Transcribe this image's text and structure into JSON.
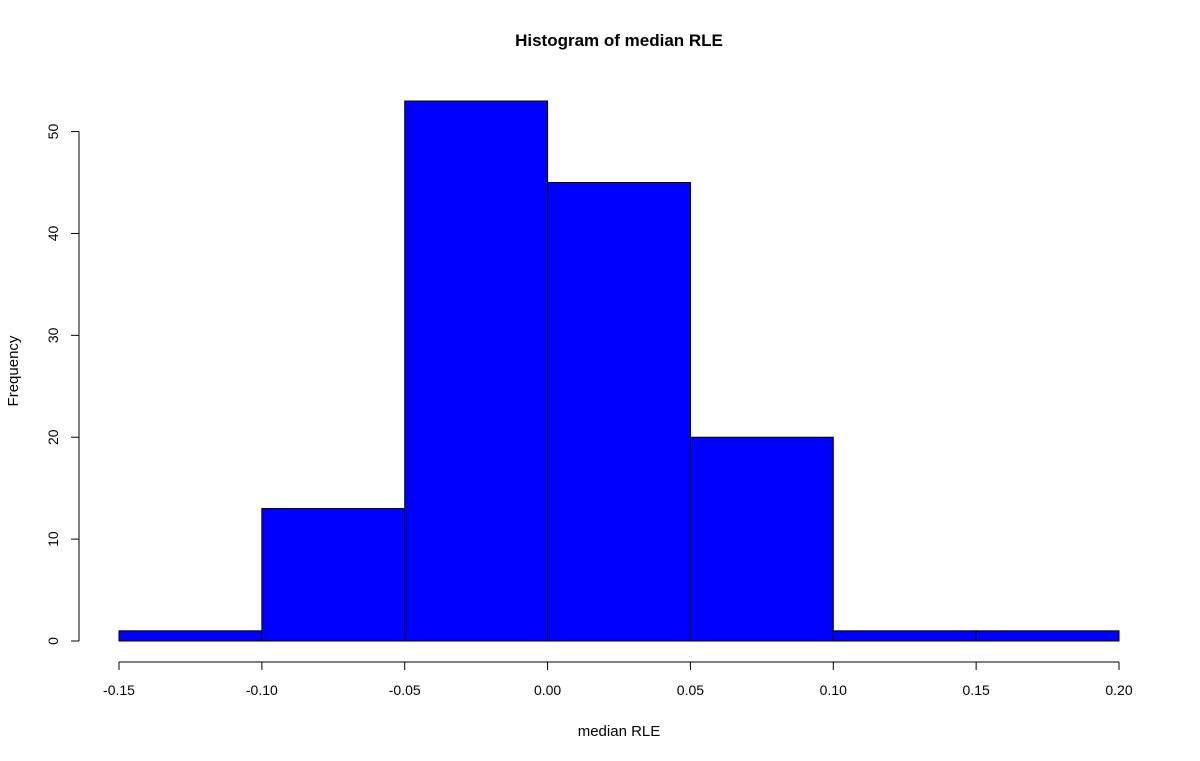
{
  "chart_data": {
    "type": "bar",
    "title": "Histogram of median RLE",
    "xlabel": "median RLE",
    "ylabel": "Frequency",
    "bins": [
      {
        "from": -0.15,
        "to": -0.1,
        "value": 1
      },
      {
        "from": -0.1,
        "to": -0.05,
        "value": 13
      },
      {
        "from": -0.05,
        "to": 0.0,
        "value": 53
      },
      {
        "from": 0.0,
        "to": 0.05,
        "value": 45
      },
      {
        "from": 0.05,
        "to": 0.1,
        "value": 20
      },
      {
        "from": 0.1,
        "to": 0.15,
        "value": 1
      },
      {
        "from": 0.15,
        "to": 0.2,
        "value": 1
      }
    ],
    "xlim": [
      -0.15,
      0.2
    ],
    "ylim": [
      0,
      53
    ],
    "x_ticks": [
      "-0.15",
      "-0.10",
      "-0.05",
      "0.00",
      "0.05",
      "0.10",
      "0.15",
      "0.20"
    ],
    "y_ticks": [
      "0",
      "10",
      "20",
      "30",
      "40",
      "50"
    ],
    "bar_color": "#0000ff",
    "grid": false,
    "legend": "none"
  }
}
